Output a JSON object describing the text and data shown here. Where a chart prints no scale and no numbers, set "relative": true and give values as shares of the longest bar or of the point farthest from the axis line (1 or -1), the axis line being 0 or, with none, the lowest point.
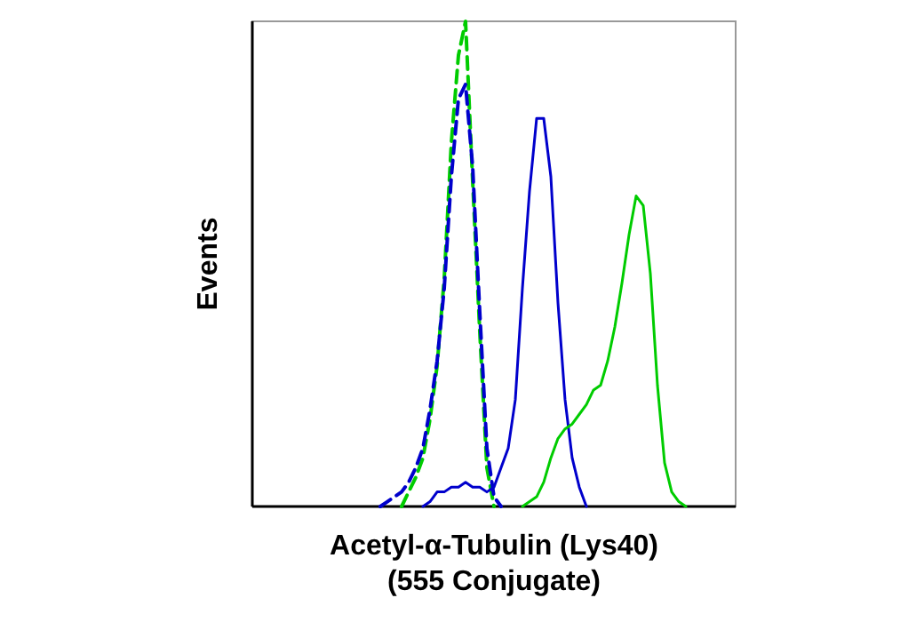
{
  "chart_data": {
    "type": "line",
    "relative": true,
    "xlabel": "Acetyl-α-Tubulin (Lys40)\n(555 Conjugate)",
    "ylabel": "Events",
    "categories": [
      null,
      null,
      null,
      null,
      null,
      null,
      null,
      null,
      null,
      null,
      null,
      null,
      null,
      null,
      null,
      null,
      null,
      null,
      null,
      null,
      null,
      null,
      null,
      null,
      null,
      null,
      null,
      null,
      null,
      null,
      null,
      null,
      null,
      null,
      null,
      null,
      null,
      null,
      null,
      null,
      null,
      null,
      null,
      null,
      null,
      null,
      null,
      null,
      null,
      null,
      null,
      null,
      null,
      null,
      null,
      null,
      null,
      null,
      null,
      null,
      null,
      null,
      null,
      null,
      null,
      null,
      null,
      null,
      null
    ],
    "series": [
      {
        "color": "#00cc00",
        "line_style": "dashed",
        "values": [
          null,
          null,
          null,
          null,
          null,
          null,
          null,
          null,
          null,
          null,
          null,
          null,
          null,
          null,
          null,
          null,
          null,
          null,
          null,
          null,
          null,
          0,
          0.03,
          0.06,
          0.1,
          0.18,
          0.29,
          0.47,
          0.75,
          0.93,
          1.0,
          0.67,
          0.36,
          0.08,
          0,
          null,
          null,
          null,
          null,
          null,
          null,
          null,
          null,
          null,
          null,
          null,
          null,
          null,
          null,
          null,
          null,
          null,
          null,
          null,
          null,
          null,
          null,
          null,
          null,
          null,
          null,
          null,
          null,
          null,
          null,
          null,
          null,
          null,
          null
        ]
      },
      {
        "color": "#0000cc",
        "line_style": "dashed",
        "values": [
          null,
          null,
          null,
          null,
          null,
          null,
          null,
          null,
          null,
          null,
          null,
          null,
          null,
          null,
          null,
          null,
          null,
          null,
          0,
          0.01,
          0.02,
          0.03,
          0.05,
          0.08,
          0.12,
          0.2,
          0.3,
          0.45,
          0.68,
          0.84,
          0.87,
          0.7,
          0.4,
          0.12,
          0.02,
          0,
          null,
          null,
          null,
          null,
          null,
          null,
          null,
          null,
          null,
          null,
          null,
          null,
          null,
          null,
          null,
          null,
          null,
          null,
          null,
          null,
          null,
          null,
          null,
          null,
          null,
          null,
          null,
          null,
          null,
          null,
          null,
          null,
          null
        ]
      },
      {
        "color": "#0000cc",
        "line_style": "solid",
        "values": [
          null,
          null,
          null,
          null,
          null,
          null,
          null,
          null,
          null,
          null,
          null,
          null,
          null,
          null,
          null,
          null,
          null,
          null,
          null,
          null,
          null,
          null,
          null,
          null,
          0,
          0.01,
          0.03,
          0.03,
          0.04,
          0.04,
          0.05,
          0.04,
          0.04,
          0.03,
          0.04,
          0.08,
          0.12,
          0.22,
          0.45,
          0.65,
          0.8,
          0.8,
          0.68,
          0.42,
          0.22,
          0.1,
          0.04,
          0,
          null,
          null,
          null,
          null,
          null,
          null,
          null,
          null,
          null,
          null,
          null,
          null,
          null,
          null,
          null,
          null,
          null,
          null,
          null,
          null,
          null
        ]
      },
      {
        "color": "#00cc00",
        "line_style": "solid",
        "values": [
          null,
          null,
          null,
          null,
          null,
          null,
          null,
          null,
          null,
          null,
          null,
          null,
          null,
          null,
          null,
          null,
          null,
          null,
          null,
          null,
          null,
          null,
          null,
          null,
          null,
          null,
          null,
          null,
          null,
          null,
          null,
          null,
          null,
          null,
          null,
          null,
          null,
          null,
          0,
          0.01,
          0.02,
          0.05,
          0.1,
          0.14,
          0.16,
          0.17,
          0.19,
          0.21,
          0.24,
          0.25,
          0.3,
          0.37,
          0.46,
          0.56,
          0.64,
          0.62,
          0.48,
          0.25,
          0.09,
          0.03,
          0.01,
          0,
          null,
          null,
          null,
          null,
          null,
          null,
          null
        ]
      }
    ]
  }
}
